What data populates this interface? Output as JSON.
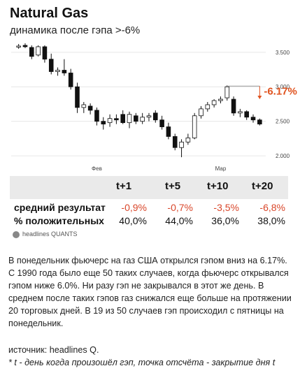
{
  "card": {
    "title": "Natural Gas",
    "subtitle": "динамика после гэпа >-6%",
    "brand": "headlines QUANTS"
  },
  "chart_data": {
    "type": "candlestick",
    "y_ticks": [
      "3.500",
      "3.000",
      "2.500",
      "2.000"
    ],
    "y_tick_values": [
      3.5,
      3.0,
      2.5,
      2.0
    ],
    "ylim": [
      1.93,
      3.65
    ],
    "x_ticks": [
      {
        "label": "Фев",
        "index": 12
      },
      {
        "label": "Мар",
        "index": 31
      }
    ],
    "gap_annotation": "-6.17%",
    "gap_from": 3.01,
    "gap_to": 2.82,
    "candles": [
      {
        "o": 3.58,
        "h": 3.62,
        "l": 3.55,
        "c": 3.59
      },
      {
        "o": 3.6,
        "h": 3.63,
        "l": 3.56,
        "c": 3.58
      },
      {
        "o": 3.57,
        "h": 3.6,
        "l": 3.4,
        "c": 3.44
      },
      {
        "o": 3.46,
        "h": 3.6,
        "l": 3.44,
        "c": 3.58
      },
      {
        "o": 3.58,
        "h": 3.6,
        "l": 3.35,
        "c": 3.4
      },
      {
        "o": 3.4,
        "h": 3.48,
        "l": 3.18,
        "c": 3.22
      },
      {
        "o": 3.22,
        "h": 3.28,
        "l": 3.16,
        "c": 3.24
      },
      {
        "o": 3.24,
        "h": 3.4,
        "l": 3.16,
        "c": 3.2
      },
      {
        "o": 3.2,
        "h": 3.26,
        "l": 2.96,
        "c": 3.0
      },
      {
        "o": 3.0,
        "h": 3.06,
        "l": 2.62,
        "c": 2.7
      },
      {
        "o": 2.7,
        "h": 2.78,
        "l": 2.62,
        "c": 2.74
      },
      {
        "o": 2.72,
        "h": 2.76,
        "l": 2.6,
        "c": 2.66
      },
      {
        "o": 2.66,
        "h": 2.7,
        "l": 2.44,
        "c": 2.5
      },
      {
        "o": 2.5,
        "h": 2.56,
        "l": 2.38,
        "c": 2.46
      },
      {
        "o": 2.48,
        "h": 2.6,
        "l": 2.42,
        "c": 2.54
      },
      {
        "o": 2.54,
        "h": 2.6,
        "l": 2.46,
        "c": 2.52
      },
      {
        "o": 2.6,
        "h": 2.66,
        "l": 2.46,
        "c": 2.48
      },
      {
        "o": 2.48,
        "h": 2.64,
        "l": 2.4,
        "c": 2.6
      },
      {
        "o": 2.58,
        "h": 2.62,
        "l": 2.46,
        "c": 2.5
      },
      {
        "o": 2.5,
        "h": 2.62,
        "l": 2.46,
        "c": 2.56
      },
      {
        "o": 2.56,
        "h": 2.62,
        "l": 2.5,
        "c": 2.58
      },
      {
        "o": 2.62,
        "h": 2.66,
        "l": 2.48,
        "c": 2.52
      },
      {
        "o": 2.52,
        "h": 2.58,
        "l": 2.38,
        "c": 2.42
      },
      {
        "o": 2.42,
        "h": 2.48,
        "l": 2.24,
        "c": 2.28
      },
      {
        "o": 2.28,
        "h": 2.32,
        "l": 2.08,
        "c": 2.12
      },
      {
        "o": 2.12,
        "h": 2.24,
        "l": 1.98,
        "c": 2.2
      },
      {
        "o": 2.2,
        "h": 2.32,
        "l": 2.16,
        "c": 2.26
      },
      {
        "o": 2.26,
        "h": 2.62,
        "l": 2.24,
        "c": 2.58
      },
      {
        "o": 2.58,
        "h": 2.72,
        "l": 2.54,
        "c": 2.68
      },
      {
        "o": 2.68,
        "h": 2.78,
        "l": 2.64,
        "c": 2.74
      },
      {
        "o": 2.74,
        "h": 2.82,
        "l": 2.7,
        "c": 2.8
      },
      {
        "o": 2.8,
        "h": 2.86,
        "l": 2.76,
        "c": 2.82
      },
      {
        "o": 2.84,
        "h": 3.02,
        "l": 2.8,
        "c": 3.0
      },
      {
        "o": 2.82,
        "h": 2.86,
        "l": 2.58,
        "c": 2.62
      },
      {
        "o": 2.62,
        "h": 2.68,
        "l": 2.56,
        "c": 2.64
      },
      {
        "o": 2.64,
        "h": 2.66,
        "l": 2.52,
        "c": 2.56
      },
      {
        "o": 2.56,
        "h": 2.6,
        "l": 2.48,
        "c": 2.52
      },
      {
        "o": 2.52,
        "h": 2.54,
        "l": 2.44,
        "c": 2.46
      }
    ]
  },
  "stats_table": {
    "columns": [
      "t+1",
      "t+5",
      "t+10",
      "t+20"
    ],
    "rows": [
      {
        "label": "средний результат",
        "values": [
          "-0,9%",
          "-0,7%",
          "-3,5%",
          "-6,8%"
        ]
      },
      {
        "label": "% положительных",
        "values": [
          "40,0%",
          "44,0%",
          "36,0%",
          "38,0%"
        ]
      }
    ]
  },
  "description": "В понедельник фьючерс на газ США открылся гэпом вниз на 6.17%. С 1990 года было еще 50 таких случаев, когда фьючерс открывался гэпом ниже 6.0%. Ни разу гэп не закрывался в этот же день. В среднем после таких гэпов газ снижался еще больше на протяжении 20 торговых дней. В 19 из 50 случаев гэп происходил с пятницы на понедельник.",
  "source": "источник: headlines Q.",
  "footnote": "* t - день когда произошёл гэп, точка отсчёта - закрытие дня t",
  "colors": {
    "up_candle": "#ffffff",
    "down_candle": "#111111",
    "annotation": "#e0531f",
    "grid": "#e6e6e6",
    "negative": "#d9472b",
    "table_header_bg": "#eaeaea"
  }
}
